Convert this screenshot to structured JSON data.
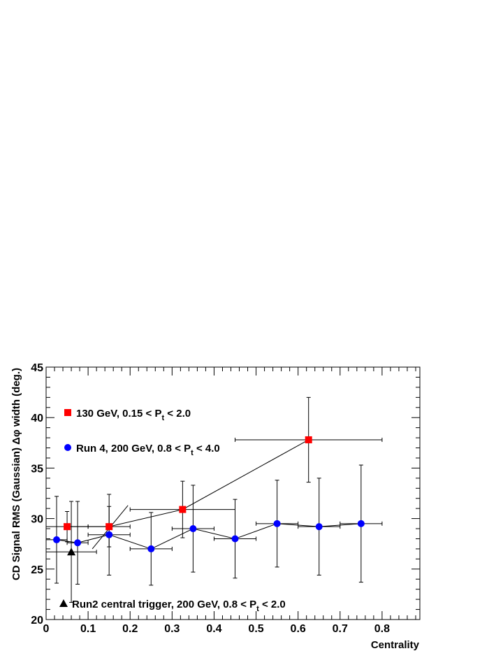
{
  "chart_data": {
    "type": "scatter",
    "title": "",
    "xlabel": "Centrality",
    "ylabel": "CD Signal RMS (Gaussian) Δφ width (deg.)",
    "xlim": [
      0,
      0.89
    ],
    "ylim": [
      20,
      45
    ],
    "x_ticks": [
      "0",
      "0.1",
      "0.2",
      "0.3",
      "0.4",
      "0.5",
      "0.6",
      "0.7",
      "0.8"
    ],
    "y_ticks": [
      "20",
      "25",
      "30",
      "35",
      "40",
      "45"
    ],
    "grid": false,
    "legend_placement": "inside",
    "series": [
      {
        "name": "130 GeV, 0.15 < Pt < 2.0",
        "legend_main": "130 GeV, 0.15 < P",
        "legend_sub": "t",
        "legend_tail": " < 2.0",
        "marker": "square",
        "color": "#ff0000",
        "connected": true,
        "points": [
          {
            "x": 0.05,
            "y": 29.2,
            "xerr": 0.05,
            "yerr": 1.5
          },
          {
            "x": 0.15,
            "y": 29.2,
            "xerr": 0.05,
            "yerr": 2.0
          },
          {
            "x": 0.325,
            "y": 30.9,
            "xerr": 0.125,
            "yerr": 2.8
          },
          {
            "x": 0.625,
            "y": 37.8,
            "xerr": 0.175,
            "yerr": 4.2
          }
        ]
      },
      {
        "name": "Run 4, 200 GeV, 0.8 < Pt < 4.0",
        "legend_main": "Run 4, 200 GeV, 0.8 < P",
        "legend_sub": "t",
        "legend_tail": " < 4.0",
        "marker": "circle",
        "color": "#0000ff",
        "connected": true,
        "points": [
          {
            "x": 0.025,
            "y": 27.9,
            "xerr": 0.025,
            "yerr": 4.3
          },
          {
            "x": 0.075,
            "y": 27.6,
            "xerr": 0.025,
            "yerr": 4.1
          },
          {
            "x": 0.15,
            "y": 28.4,
            "xerr": 0.05,
            "yerr": 4.0
          },
          {
            "x": 0.25,
            "y": 27.0,
            "xerr": 0.05,
            "yerr": 3.6
          },
          {
            "x": 0.35,
            "y": 29.0,
            "xerr": 0.05,
            "yerr": 4.3
          },
          {
            "x": 0.45,
            "y": 28.0,
            "xerr": 0.05,
            "yerr": 3.9
          },
          {
            "x": 0.55,
            "y": 29.5,
            "xerr": 0.05,
            "yerr": 4.3
          },
          {
            "x": 0.65,
            "y": 29.2,
            "xerr": 0.05,
            "yerr": 4.8
          },
          {
            "x": 0.75,
            "y": 29.5,
            "xerr": 0.05,
            "yerr": 5.8
          }
        ]
      },
      {
        "name": "Run2 central trigger, 200 GeV, 0.8 < Pt < 2.0",
        "legend_main": "Run2 central trigger, 200 GeV, 0.8 < P",
        "legend_sub": "t",
        "legend_tail": " < 2.0",
        "marker": "triangle",
        "color": "#000000",
        "connected": false,
        "points": [
          {
            "x": 0.06,
            "y": 26.7,
            "xerr": 0.06,
            "yerr": 5.0
          }
        ]
      }
    ],
    "extra_line": {
      "x": [
        0.11,
        0.195
      ],
      "y": [
        27.0,
        31.3
      ]
    }
  }
}
